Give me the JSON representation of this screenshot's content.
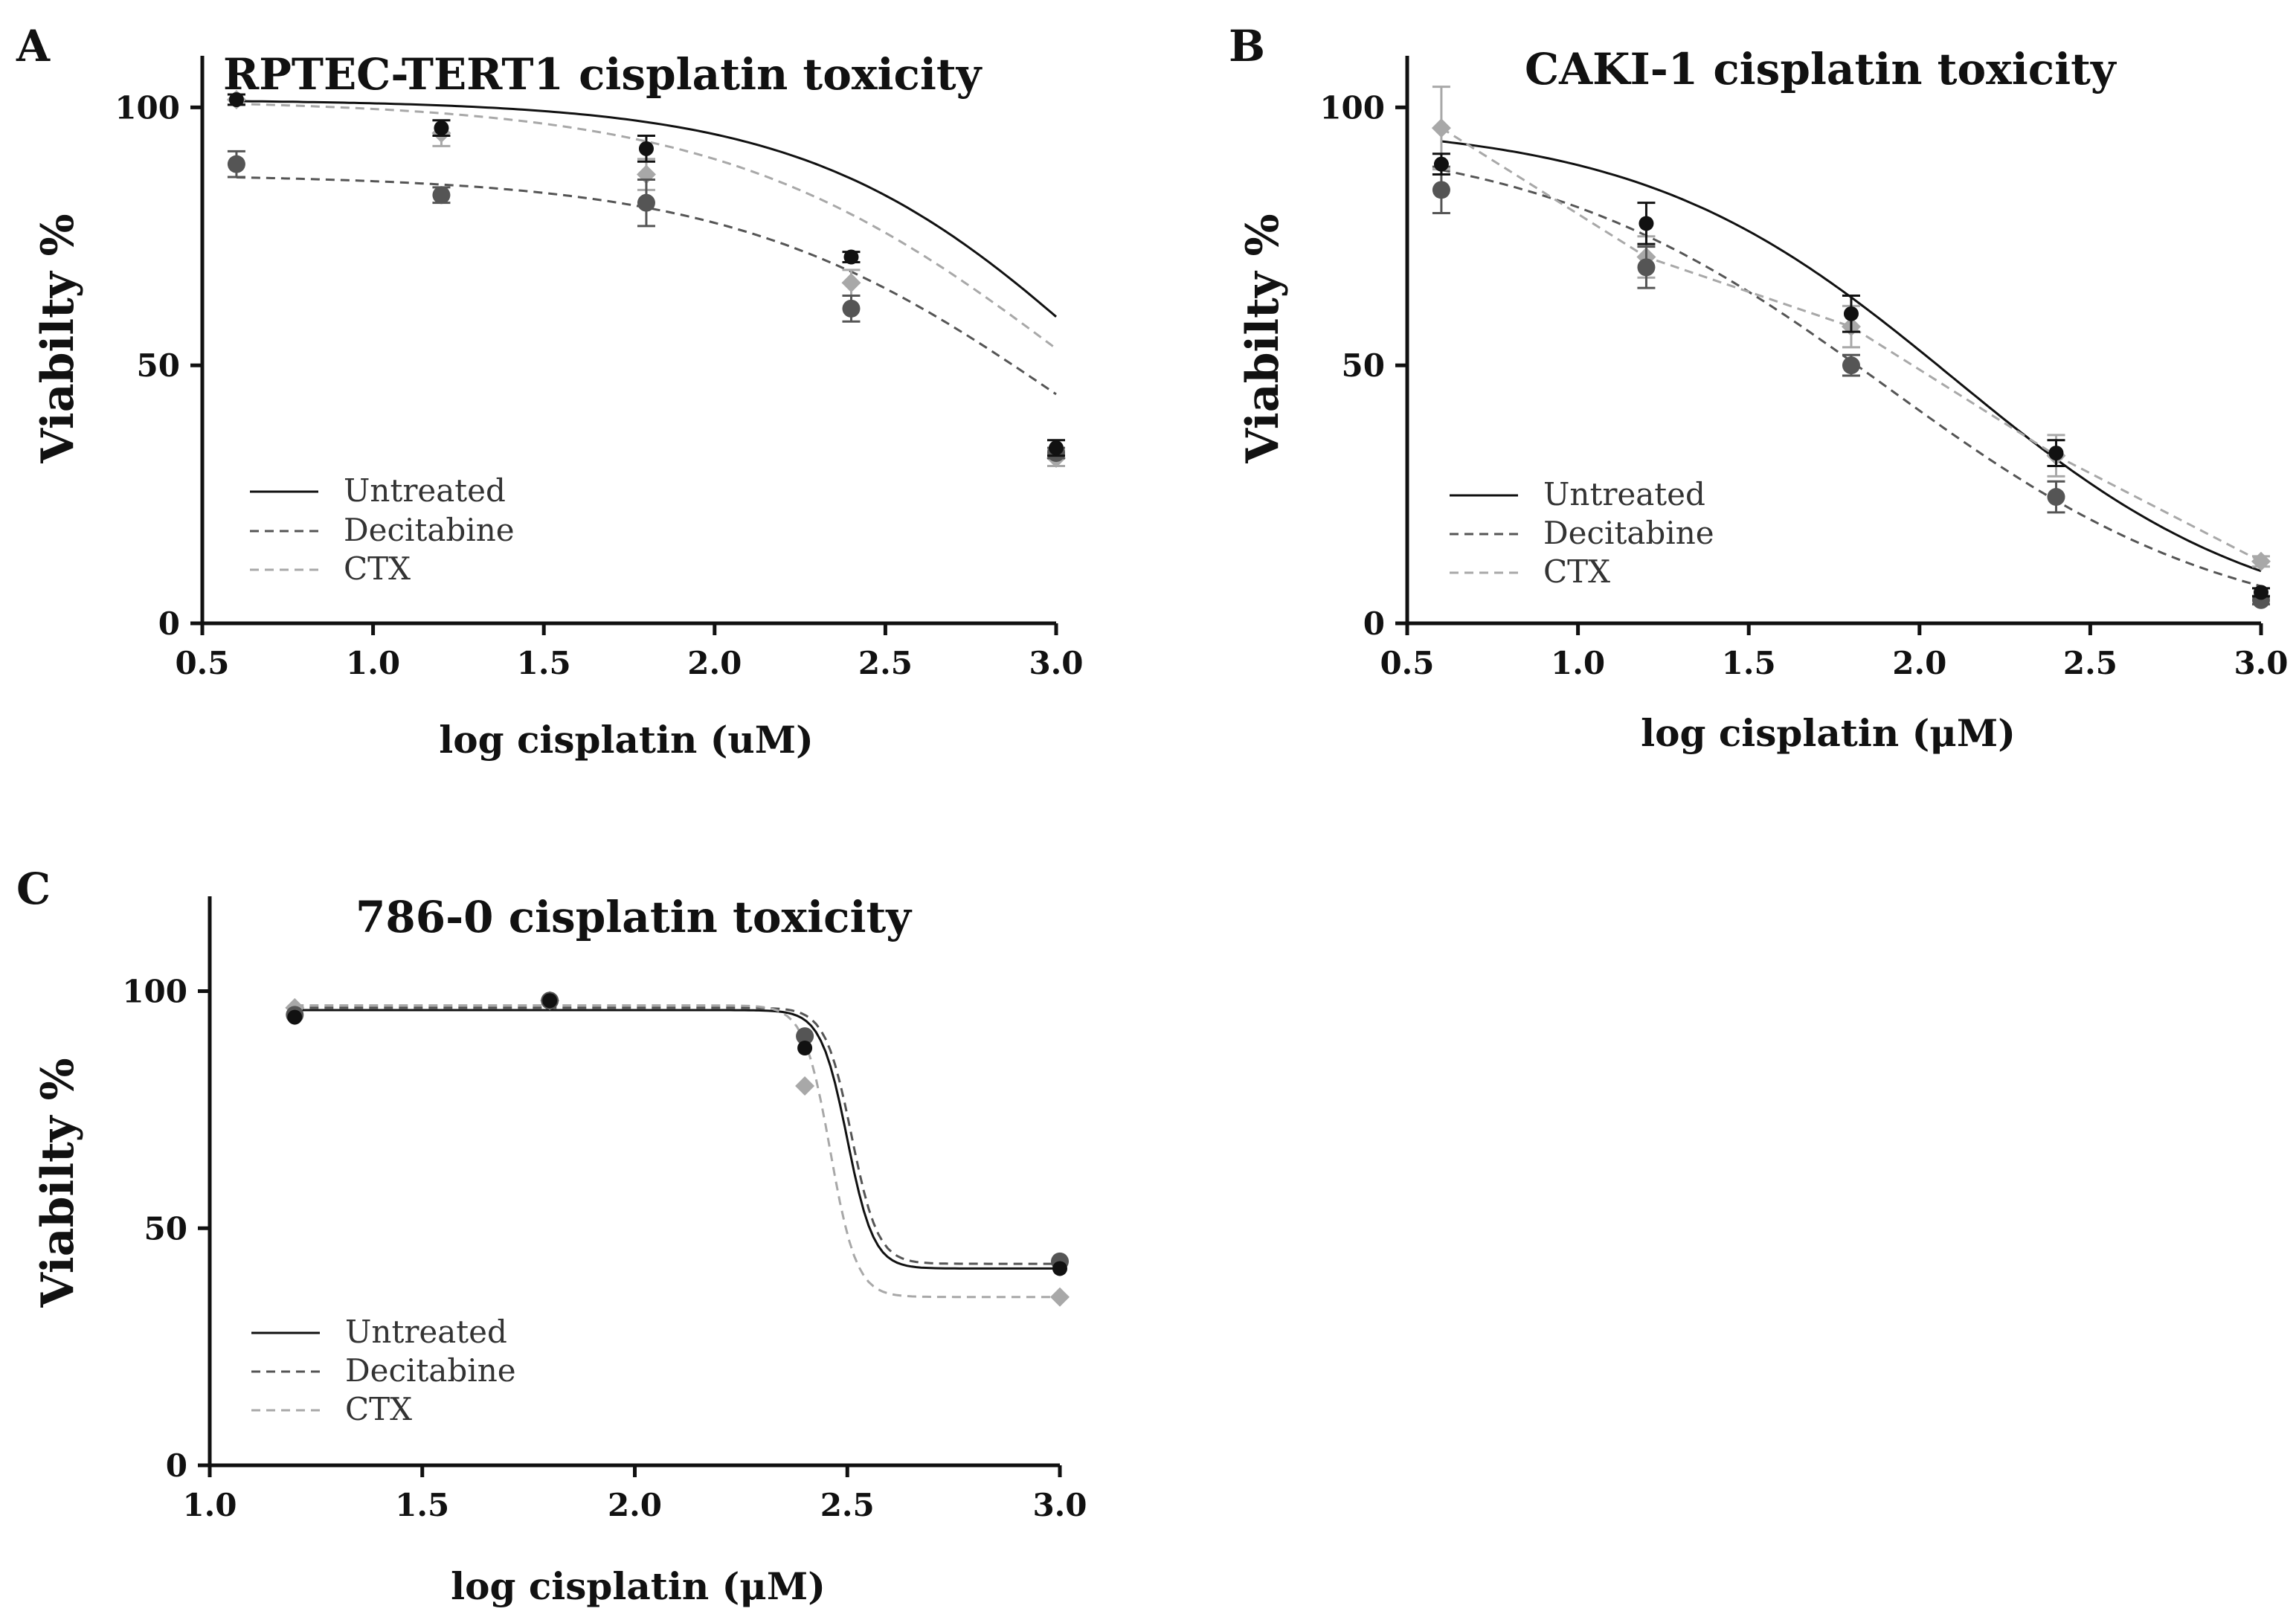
{
  "colors": {
    "Untreated": "#111111",
    "Decitabine": "#555555",
    "CTX": "#a8a8a8"
  },
  "chart_data": [
    {
      "type": "line",
      "panel": "A",
      "title": "RPTEC-TERT1 cisplatin toxicity",
      "xlabel": "log cisplatin (uM)",
      "ylabel": "Viabilty %",
      "xlim": [
        0.5,
        3.0
      ],
      "ylim": [
        0,
        110
      ],
      "xticks": [
        "0.5",
        "1.0",
        "1.5",
        "2.0",
        "2.5",
        "3.0"
      ],
      "yticks": [
        "0",
        "50",
        "100"
      ],
      "legend": [
        "Untreated",
        "Decitabine",
        "CTX"
      ],
      "legend_position": "bottom-left",
      "series": [
        {
          "name": "Untreated",
          "x": [
            0.6,
            1.2,
            1.8,
            2.4,
            3.0
          ],
          "values": [
            101.5,
            96,
            92,
            71,
            34
          ],
          "err": [
            1,
            1.5,
            2.5,
            1,
            1.5
          ],
          "curve": {
            "top": 101.5,
            "bottom": 0,
            "logIC50": 3.15,
            "hill": -1
          }
        },
        {
          "name": "Decitabine",
          "x": [
            0.6,
            1.2,
            1.8,
            2.4,
            3.0
          ],
          "values": [
            89,
            83,
            81.5,
            61,
            33
          ],
          "err": [
            2.5,
            1.5,
            4.5,
            2.5,
            1
          ],
          "curve": {
            "top": 87,
            "bottom": 0,
            "logIC50": 3.02,
            "hill": -0.9
          }
        },
        {
          "name": "CTX",
          "x": [
            0.6,
            1.2,
            1.8,
            2.4,
            3.0
          ],
          "values": [
            101.5,
            95,
            87,
            66,
            32
          ],
          "err": [
            1,
            2.5,
            3,
            2.5,
            1.5
          ],
          "curve": {
            "top": 101.5,
            "bottom": 0,
            "logIC50": 3.05,
            "hill": -0.85
          }
        }
      ]
    },
    {
      "type": "line",
      "panel": "B",
      "title": "CAKI-1 cisplatin toxicity",
      "xlabel": "log cisplatin (μM)",
      "ylabel": "Viabilty %",
      "xlim": [
        0.5,
        3.0
      ],
      "ylim": [
        0,
        110
      ],
      "xticks": [
        "0.5",
        "1.0",
        "1.5",
        "2.0",
        "2.5",
        "3.0"
      ],
      "yticks": [
        "0",
        "50",
        "100"
      ],
      "legend": [
        "Untreated",
        "Decitabine",
        "CTX"
      ],
      "legend_position": "bottom-left",
      "series": [
        {
          "name": "Untreated",
          "x": [
            0.6,
            1.2,
            1.8,
            2.4,
            3.0
          ],
          "values": [
            89,
            77.5,
            60,
            33,
            6
          ],
          "err": [
            2,
            4,
            3.5,
            2.5,
            0.8
          ],
          "curve": {
            "top": 97,
            "bottom": -2,
            "logIC50": 2.1,
            "hill": -0.95
          }
        },
        {
          "name": "Decitabine",
          "x": [
            0.6,
            1.2,
            1.8,
            2.4,
            3.0
          ],
          "values": [
            84,
            69,
            50,
            24.5,
            4.5
          ],
          "err": [
            4.5,
            4,
            2,
            3,
            0.8
          ],
          "curve": {
            "top": 95,
            "bottom": -3,
            "logIC50": 1.9,
            "hill": -0.85
          }
        },
        {
          "name": "CTX",
          "x": [
            0.6,
            1.2,
            1.8,
            2.4,
            3.0
          ],
          "values": [
            96,
            71,
            57.5,
            32.5,
            12
          ],
          "err": [
            8,
            4,
            4,
            4,
            1
          ]
        }
      ]
    },
    {
      "type": "line",
      "panel": "C",
      "title": "786-0 cisplatin toxicity",
      "xlabel": "log cisplatin (μM)",
      "ylabel": "Viabilty %",
      "xlim": [
        1.0,
        3.0
      ],
      "ylim": [
        0,
        120
      ],
      "xticks": [
        "1.0",
        "1.5",
        "2.0",
        "2.5",
        "3.0"
      ],
      "yticks": [
        "0",
        "50",
        "100"
      ],
      "legend": [
        "Untreated",
        "Decitabine",
        "CTX"
      ],
      "legend_position": "bottom-left",
      "series": [
        {
          "name": "Untreated",
          "x": [
            1.2,
            1.8,
            2.4,
            3.0
          ],
          "values": [
            94.5,
            98,
            88,
            41.5
          ],
          "err": [
            0,
            0,
            0,
            0
          ],
          "curve": {
            "top": 96,
            "bottom": 41.5,
            "logIC50": 2.5,
            "hill": -14
          }
        },
        {
          "name": "Decitabine",
          "x": [
            1.2,
            1.8,
            2.4,
            3.0
          ],
          "values": [
            95,
            98,
            90.5,
            43
          ],
          "err": [
            0,
            0,
            0,
            0
          ],
          "curve": {
            "top": 96.5,
            "bottom": 42.5,
            "logIC50": 2.51,
            "hill": -14
          }
        },
        {
          "name": "CTX",
          "x": [
            1.2,
            1.8,
            2.4,
            3.0
          ],
          "values": [
            96.5,
            98,
            80,
            35.5
          ],
          "err": [
            0,
            0,
            0,
            0
          ],
          "curve": {
            "top": 97,
            "bottom": 35.5,
            "logIC50": 2.46,
            "hill": -14
          }
        }
      ]
    }
  ]
}
